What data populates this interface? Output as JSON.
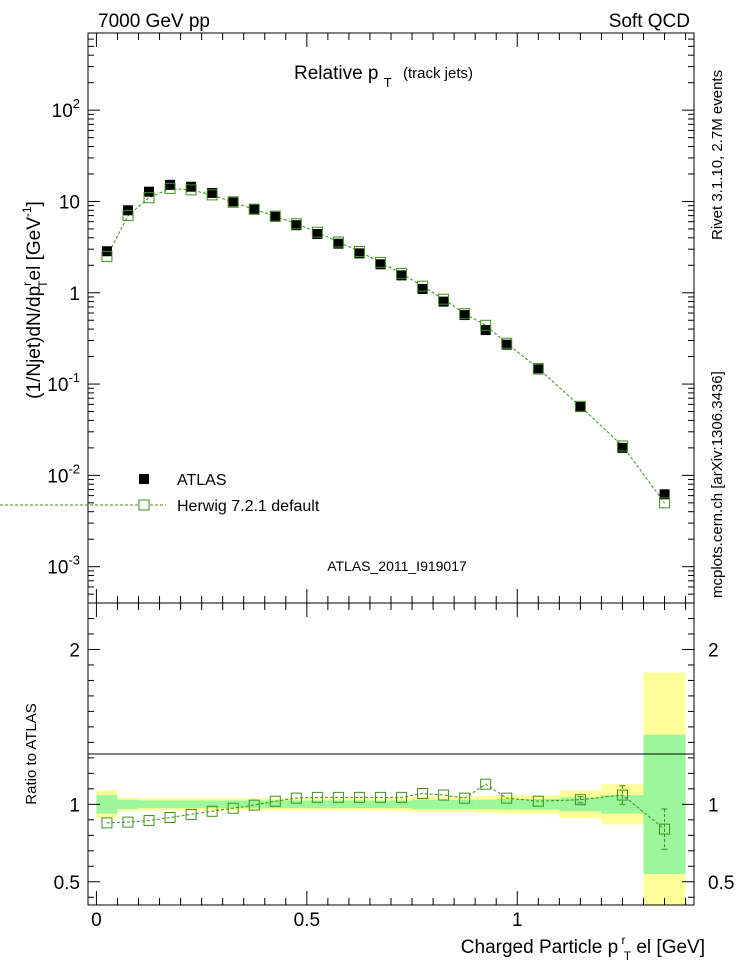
{
  "header": {
    "left": "7000 GeV pp",
    "right": "Soft QCD"
  },
  "side_labels": {
    "top": "Rivet 3.1.10, 2.7M events",
    "bottom": "mcplots.cern.ch [arXiv:1306.3436]"
  },
  "watermark": "ATLAS_2011_I919017",
  "colors": {
    "mc": "#3f8f1a",
    "band_inner": "#9cf79c",
    "band_outer": "#ffff99",
    "data": "#000000"
  },
  "chart_data": [
    {
      "type": "scatter",
      "panel": "main",
      "title": "Relative p_T (track jets)",
      "title_main": "Relative p",
      "title_sub": "T",
      "title_suffix": "(track jets)",
      "ylabel": "(1/Njet)dN/dp_T^rel [GeV^-1]",
      "yscale": "log",
      "xlim": [
        -0.02,
        1.42
      ],
      "ylim": [
        0.0004,
        700
      ],
      "y_tick_labels": [
        "10^-3",
        "10^-2",
        "10^-1",
        "1",
        "10",
        "10^2"
      ],
      "legend": {
        "position": "lower-left",
        "entries": [
          "ATLAS",
          "Herwig 7.2.1 default"
        ]
      },
      "series": [
        {
          "name": "ATLAS",
          "marker": "filled-square",
          "points": [
            [
              0.025,
              2.85
            ],
            [
              0.075,
              8.0
            ],
            [
              0.125,
              12.8
            ],
            [
              0.175,
              15.2
            ],
            [
              0.225,
              14.5
            ],
            [
              0.275,
              12.4
            ],
            [
              0.325,
              10.0
            ],
            [
              0.375,
              8.3
            ],
            [
              0.425,
              6.8
            ],
            [
              0.475,
              5.5
            ],
            [
              0.525,
              4.4
            ],
            [
              0.575,
              3.45
            ],
            [
              0.625,
              2.7
            ],
            [
              0.675,
              2.05
            ],
            [
              0.725,
              1.55
            ],
            [
              0.775,
              1.1
            ],
            [
              0.825,
              0.8
            ],
            [
              0.875,
              0.57
            ],
            [
              0.925,
              0.39
            ],
            [
              0.975,
              0.27
            ],
            [
              1.05,
              0.145
            ],
            [
              1.15,
              0.056
            ],
            [
              1.25,
              0.02
            ],
            [
              1.35,
              0.0062
            ]
          ]
        },
        {
          "name": "Herwig 7.2.1 default",
          "marker": "open-square",
          "points": [
            [
              0.025,
              2.5
            ],
            [
              0.075,
              7.0
            ],
            [
              0.125,
              11.0
            ],
            [
              0.175,
              13.9
            ],
            [
              0.225,
              13.4
            ],
            [
              0.275,
              11.8
            ],
            [
              0.325,
              9.8
            ],
            [
              0.375,
              8.2
            ],
            [
              0.425,
              6.9
            ],
            [
              0.475,
              5.7
            ],
            [
              0.525,
              4.6
            ],
            [
              0.575,
              3.6
            ],
            [
              0.625,
              2.83
            ],
            [
              0.675,
              2.15
            ],
            [
              0.725,
              1.63
            ],
            [
              0.775,
              1.18
            ],
            [
              0.825,
              0.85
            ],
            [
              0.875,
              0.59
            ],
            [
              0.925,
              0.44
            ],
            [
              0.975,
              0.28
            ],
            [
              1.05,
              0.148
            ],
            [
              1.15,
              0.057
            ],
            [
              1.25,
              0.021
            ],
            [
              1.35,
              0.005
            ]
          ]
        }
      ]
    },
    {
      "type": "scatter",
      "panel": "ratio",
      "ylabel": "Ratio to ATLAS",
      "xlabel": "Charged Particle p_T^rel [GeV]",
      "xlabel_main": "Charged Particle p",
      "xlabel_sup": "r",
      "xlabel_sub": "T",
      "xlabel_suffix": "el [GeV]",
      "xlim": [
        -0.02,
        1.42
      ],
      "ylim": [
        0.35,
        2.3
      ],
      "x_tick_labels": [
        "0",
        "0.5",
        "1"
      ],
      "y_tick_labels": [
        "0.5",
        "1",
        "2"
      ],
      "bins": [
        0,
        0.05,
        0.1,
        0.15,
        0.2,
        0.25,
        0.3,
        0.35,
        0.4,
        0.45,
        0.5,
        0.55,
        0.6,
        0.65,
        0.7,
        0.75,
        0.8,
        0.85,
        0.9,
        0.95,
        1.0,
        1.1,
        1.2,
        1.3,
        1.4
      ],
      "band_inner": [
        0.06,
        0.03,
        0.025,
        0.025,
        0.025,
        0.025,
        0.025,
        0.025,
        0.025,
        0.025,
        0.025,
        0.025,
        0.025,
        0.025,
        0.025,
        0.03,
        0.03,
        0.03,
        0.03,
        0.035,
        0.035,
        0.045,
        0.06,
        0.45
      ],
      "band_outer": [
        0.09,
        0.045,
        0.04,
        0.04,
        0.04,
        0.04,
        0.04,
        0.04,
        0.04,
        0.04,
        0.04,
        0.04,
        0.04,
        0.04,
        0.045,
        0.05,
        0.05,
        0.05,
        0.055,
        0.06,
        0.06,
        0.09,
        0.13,
        0.85
      ],
      "series": [
        {
          "name": "Herwig 7.2.1 default",
          "points": [
            [
              0.025,
              0.88
            ],
            [
              0.075,
              0.885
            ],
            [
              0.125,
              0.895
            ],
            [
              0.175,
              0.915
            ],
            [
              0.225,
              0.935
            ],
            [
              0.275,
              0.955
            ],
            [
              0.325,
              0.975
            ],
            [
              0.375,
              0.995
            ],
            [
              0.425,
              1.02
            ],
            [
              0.475,
              1.04
            ],
            [
              0.525,
              1.045
            ],
            [
              0.575,
              1.045
            ],
            [
              0.625,
              1.045
            ],
            [
              0.675,
              1.045
            ],
            [
              0.725,
              1.045
            ],
            [
              0.775,
              1.07
            ],
            [
              0.825,
              1.06
            ],
            [
              0.875,
              1.04
            ],
            [
              0.925,
              1.13
            ],
            [
              0.975,
              1.04
            ],
            [
              1.05,
              1.02
            ],
            [
              1.15,
              1.03
            ],
            [
              1.25,
              1.06
            ],
            [
              1.35,
              0.84
            ]
          ],
          "err": [
            0.005,
            0.005,
            0.005,
            0.005,
            0.005,
            0.005,
            0.005,
            0.005,
            0.005,
            0.005,
            0.005,
            0.005,
            0.005,
            0.005,
            0.005,
            0.005,
            0.005,
            0.005,
            0.005,
            0.005,
            0.008,
            0.02,
            0.06,
            0.13
          ]
        }
      ]
    }
  ]
}
